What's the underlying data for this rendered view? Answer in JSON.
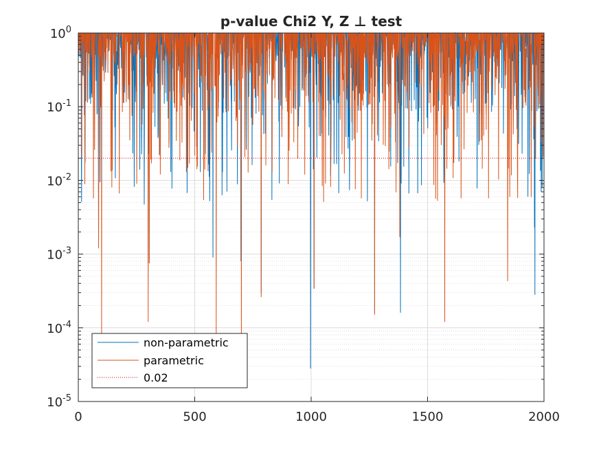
{
  "chart_data": {
    "type": "line",
    "title": "p-value Chi2 Y, Z ⊥ test",
    "xlabel": "",
    "ylabel": "",
    "xlim": [
      0,
      2000
    ],
    "ylim": [
      1e-05,
      1
    ],
    "yscale": "log",
    "grid": "on",
    "minor_grid": "on",
    "x_ticks": [
      "0",
      "500",
      "1000",
      "1500",
      "2000"
    ],
    "y_ticks": [
      {
        "base": "10",
        "exp": "-5"
      },
      {
        "base": "10",
        "exp": "-4"
      },
      {
        "base": "10",
        "exp": "-3"
      },
      {
        "base": "10",
        "exp": "-2"
      },
      {
        "base": "10",
        "exp": "-1"
      },
      {
        "base": "10",
        "exp": "0"
      }
    ],
    "legend_position": "bottom-left",
    "series": [
      {
        "name": "non-parametric",
        "color": "#0072BD",
        "style": "solid",
        "num_points": 2000,
        "deep_minima": [
          {
            "x": 87,
            "y": 0.0012
          },
          {
            "x": 283,
            "y": 0.0047
          },
          {
            "x": 300,
            "y": 0.00075
          },
          {
            "x": 578,
            "y": 0.0009
          },
          {
            "x": 698,
            "y": 0.0008
          },
          {
            "x": 785,
            "y": 0.0003
          },
          {
            "x": 997,
            "y": 2.8e-05
          },
          {
            "x": 1012,
            "y": 0.00034
          },
          {
            "x": 1272,
            "y": 0.00016
          },
          {
            "x": 1383,
            "y": 0.00016
          },
          {
            "x": 1960,
            "y": 0.00028
          },
          {
            "x": 1958,
            "y": 0.0023
          }
        ]
      },
      {
        "name": "parametric",
        "color": "#D95319",
        "style": "solid",
        "num_points": 2000,
        "deep_minima": [
          {
            "x": 100,
            "y": 8e-05
          },
          {
            "x": 87,
            "y": 0.0012
          },
          {
            "x": 300,
            "y": 0.00012
          },
          {
            "x": 305,
            "y": 0.00075
          },
          {
            "x": 592,
            "y": 8e-05
          },
          {
            "x": 700,
            "y": 3e-05
          },
          {
            "x": 785,
            "y": 0.00026
          },
          {
            "x": 1012,
            "y": 0.00034
          },
          {
            "x": 1272,
            "y": 0.00015
          },
          {
            "x": 1380,
            "y": 0.0017
          },
          {
            "x": 1573,
            "y": 0.00012
          },
          {
            "x": 1843,
            "y": 0.00043
          }
        ]
      },
      {
        "name": "0.02",
        "color": "#C00000",
        "style": "dotted",
        "y_constant": 0.02
      }
    ]
  }
}
